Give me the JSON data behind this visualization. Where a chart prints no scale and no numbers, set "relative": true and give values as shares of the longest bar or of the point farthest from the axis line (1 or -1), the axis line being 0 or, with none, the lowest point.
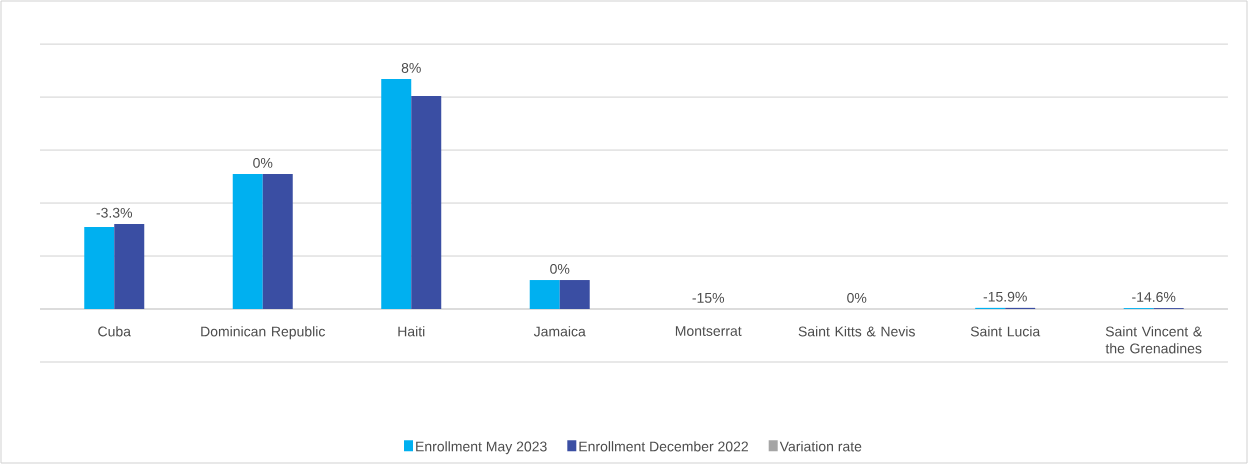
{
  "chart_data": {
    "type": "bar",
    "relative": true,
    "grid": "y",
    "legend": "bottom",
    "categories": [
      "Cuba",
      "Dominican Republic",
      "Haiti",
      "Jamaica",
      "Montserrat",
      "Saint Kitts & Nevis",
      "Saint Lucia",
      "Saint Vincent & the Grenadines"
    ],
    "series": [
      {
        "name": "Enrollment May 2023",
        "color": "#00b0f0",
        "values": [
          0.357,
          0.587,
          1.0,
          0.126,
          0,
          0,
          0.005,
          0.004
        ]
      },
      {
        "name": "Enrollment December 2022",
        "color": "#3a4ea3",
        "values": [
          0.37,
          0.587,
          0.926,
          0.126,
          0,
          0,
          0.005,
          0.004
        ]
      },
      {
        "name": "Variation rate",
        "color": "#a5a5a5",
        "values": [
          null,
          null,
          null,
          null,
          null,
          null,
          null,
          null
        ]
      }
    ],
    "annotations": [
      {
        "text": "-3.3%",
        "x": "Cuba",
        "y": 0.37
      },
      {
        "text": "0%",
        "x": "Dominican Republic",
        "y": 0.587
      },
      {
        "text": "8%",
        "x": "Haiti",
        "y": 1.0
      },
      {
        "text": "0%",
        "x": "Jamaica",
        "y": 0.126
      },
      {
        "text": "-15%",
        "x": "Montserrat",
        "y": 0
      },
      {
        "text": "0%",
        "x": "Saint Kitts & Nevis",
        "y": 0
      },
      {
        "text": "-15.9%",
        "x": "Saint Lucia",
        "y": 0.005
      },
      {
        "text": "-14.6%",
        "x": "Saint Vincent & the Grenadines",
        "y": 0.004
      }
    ]
  }
}
